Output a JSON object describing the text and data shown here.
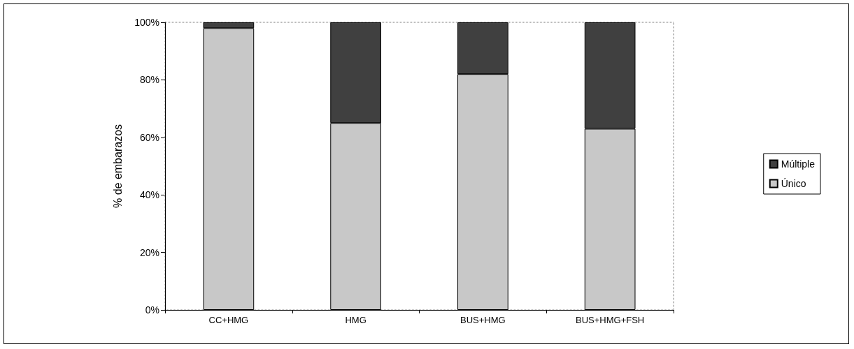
{
  "chart_data": {
    "type": "bar",
    "stacked": true,
    "ylabel": "% de embarazos",
    "categories": [
      "CC+HMG",
      "HMG",
      "BUS+HMG",
      "BUS+HMG+FSH"
    ],
    "series": [
      {
        "name": "Único",
        "color": "#c8c8c8",
        "values": [
          98,
          65,
          82,
          63
        ]
      },
      {
        "name": "Múltiple",
        "color": "#404040",
        "values": [
          2,
          35,
          18,
          37
        ]
      }
    ],
    "ylim": [
      0,
      100
    ],
    "yticks": [
      {
        "value": 0,
        "label": "0%"
      },
      {
        "value": 20,
        "label": "20%"
      },
      {
        "value": 40,
        "label": "40%"
      },
      {
        "value": 60,
        "label": "60%"
      },
      {
        "value": 80,
        "label": "80%"
      },
      {
        "value": 100,
        "label": "100%"
      }
    ],
    "grid": false,
    "legend": "right"
  }
}
